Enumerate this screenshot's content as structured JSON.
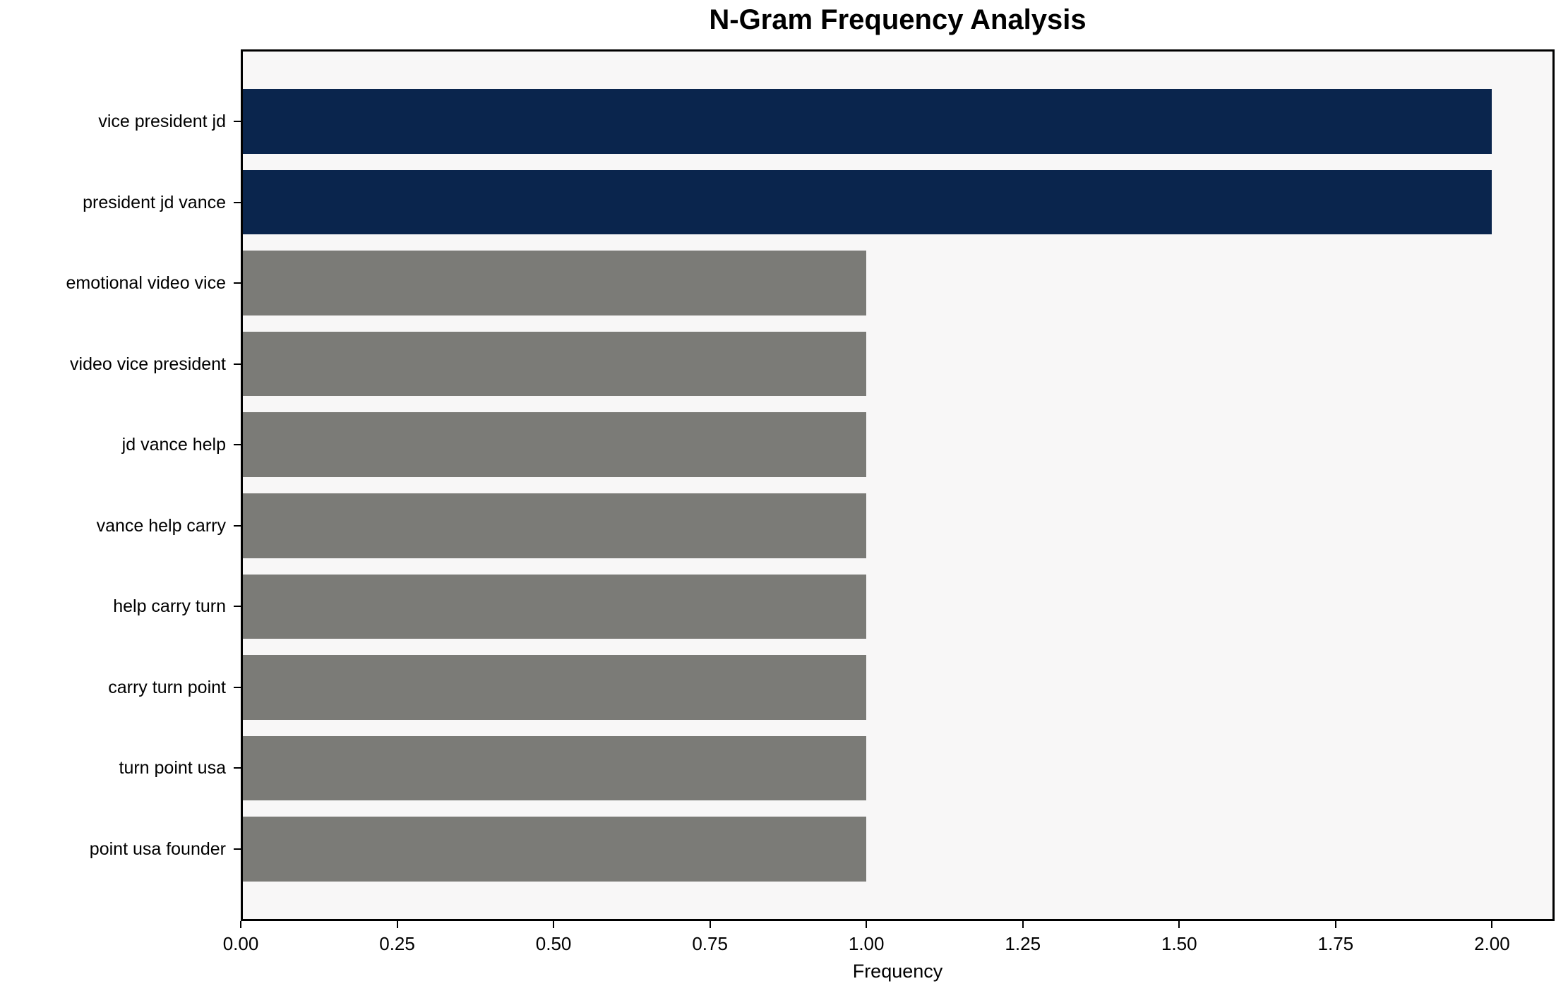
{
  "chart_data": {
    "type": "bar",
    "orientation": "horizontal",
    "title": "N-Gram Frequency Analysis",
    "xlabel": "Frequency",
    "ylabel": "",
    "categories": [
      "vice president jd",
      "president jd vance",
      "emotional video vice",
      "video vice president",
      "jd vance help",
      "vance help carry",
      "help carry turn",
      "carry turn point",
      "turn point usa",
      "point usa founder"
    ],
    "values": [
      2,
      2,
      1,
      1,
      1,
      1,
      1,
      1,
      1,
      1
    ],
    "bar_colors": [
      "#0a254d",
      "#0a254d",
      "#7b7b77",
      "#7b7b77",
      "#7b7b77",
      "#7b7b77",
      "#7b7b77",
      "#7b7b77",
      "#7b7b77",
      "#7b7b77"
    ],
    "colors": {
      "highlight": "#0a254d",
      "default": "#7b7b77",
      "plot_background": "#f8f7f7",
      "figure_background": "#ffffff",
      "axis": "#000000",
      "text": "#000000"
    },
    "xlim": [
      0,
      2.1
    ],
    "x_tick_values": [
      0,
      0.25,
      0.5,
      0.75,
      1.0,
      1.25,
      1.5,
      1.75,
      2.0
    ],
    "x_tick_labels": [
      "0.00",
      "0.25",
      "0.50",
      "0.75",
      "1.00",
      "1.25",
      "1.50",
      "1.75",
      "2.00"
    ],
    "bar_height_fraction": 0.8,
    "grid": false,
    "legend_position": "none"
  }
}
